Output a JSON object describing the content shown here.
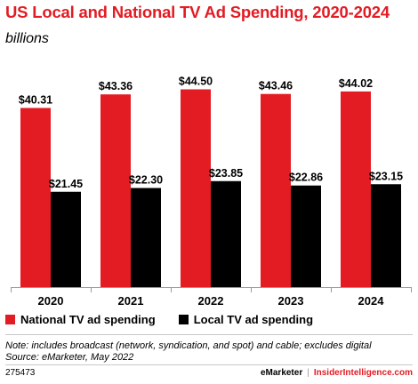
{
  "title": "US Local and National TV Ad Spending, 2020-2024",
  "subtitle": "billions",
  "colors": {
    "national": "#e31b23",
    "local": "#000000",
    "title": "#e31b23",
    "axis": "#9a9a9a"
  },
  "chart_data": {
    "type": "bar",
    "categories": [
      "2020",
      "2021",
      "2022",
      "2023",
      "2024"
    ],
    "series": [
      {
        "name": "National TV ad spending",
        "values": [
          40.31,
          43.36,
          44.5,
          43.46,
          44.02
        ],
        "labels": [
          "$40.31",
          "$43.36",
          "$44.50",
          "$43.46",
          "$44.02"
        ]
      },
      {
        "name": "Local TV ad spending",
        "values": [
          21.45,
          22.3,
          23.85,
          22.86,
          23.15
        ],
        "labels": [
          "$21.45",
          "$22.30",
          "$23.85",
          "$22.86",
          "$23.15"
        ]
      }
    ],
    "ylim": [
      0,
      50
    ],
    "grid": false,
    "legend": "bottom-left"
  },
  "note": "Note: includes broadcast (network, syndication, and spot) and cable; excludes digital",
  "source": "Source: eMarketer, May 2022",
  "footer": {
    "id": "275473",
    "brand": "eMarketer",
    "separator": "|",
    "site": "InsiderIntelligence.com"
  }
}
